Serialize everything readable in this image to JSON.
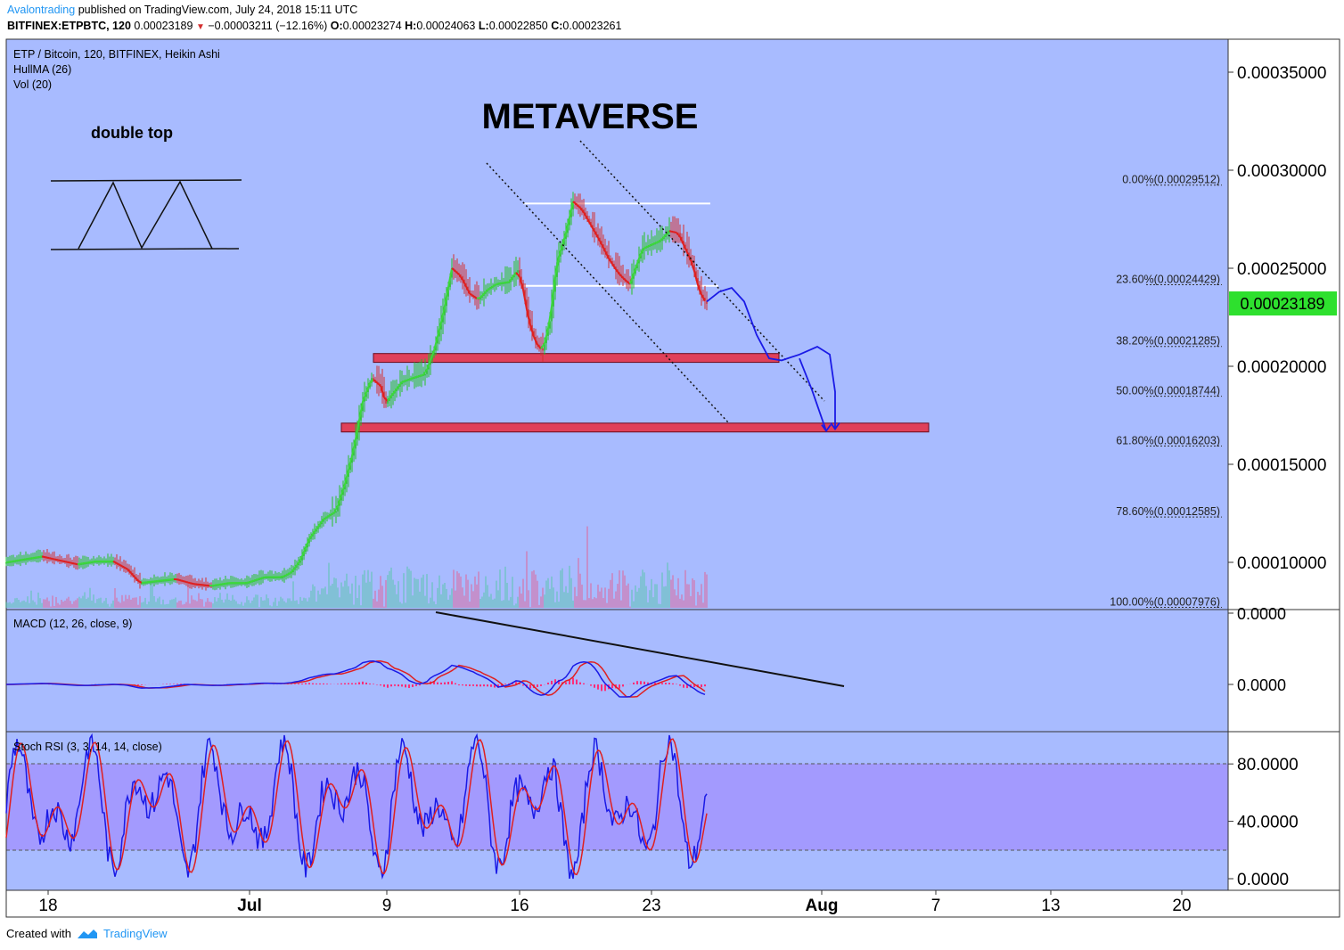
{
  "header": {
    "author": "Avalontrading",
    "published_text": "published on TradingView.com, July 24, 2018 15:11 UTC",
    "symbol": "BITFINEX:ETPBTC, 120",
    "last": "0.00023189",
    "change": "−0.00003211 (−12.16%)",
    "o_label": "O:",
    "o_value": "0.00023274",
    "h_label": "H:",
    "h_value": "0.00024063",
    "l_label": "L:",
    "l_value": "0.00022850",
    "c_label": "C:",
    "c_value": "0.00023261"
  },
  "legend": {
    "title": "ETP / Bitcoin, 120, BITFINEX, Heikin Ashi",
    "hullma": "HullMA (26)",
    "vol": "Vol (20)",
    "macd": "MACD (12, 26, close, 9)",
    "stoch": "Stoch RSI (3, 3, 14, 14, close)"
  },
  "annotations": {
    "main_title": "METAVERSE",
    "pattern_label": "double top"
  },
  "colors": {
    "background": "#a8bbff",
    "stoch_band": "#a39afe",
    "up": "#26c126",
    "down": "#d32f2f",
    "zone_fill": "#e0405a",
    "forecast": "#1a1ae6",
    "price_tag": "#2ee02e"
  },
  "chart_data": [
    {
      "type": "candlestick",
      "title": "ETP / Bitcoin, 120, BITFINEX, Heikin Ashi",
      "price_axis": {
        "range": [
          7e-05,
          0.00038
        ],
        "ticks": [
          "0.00010000",
          "0.00015000",
          "0.00020000",
          "0.00025000",
          "0.00030000",
          "0.00035000"
        ],
        "tick_values": [
          0.0001,
          0.00015,
          0.0002,
          0.00025,
          0.0003,
          0.00035
        ]
      },
      "time_axis": {
        "labels": [
          "18",
          "Jul",
          "9",
          "16",
          "23",
          "Aug",
          "7",
          "13",
          "20"
        ],
        "bold": [
          "Jul",
          "Aug"
        ]
      },
      "current_price": "0.00023189",
      "current_price_value": 0.00023189,
      "fibonacci": [
        {
          "label": "0.00%(0.00029512)",
          "value": 0.00029512
        },
        {
          "label": "23.60%(0.00024429)",
          "value": 0.00024429
        },
        {
          "label": "38.20%(0.00021285)",
          "value": 0.00021285
        },
        {
          "label": "50.00%(0.00018744)",
          "value": 0.00018744
        },
        {
          "label": "61.80%(0.00016203)",
          "value": 0.00016203
        },
        {
          "label": "78.60%(0.00012585)",
          "value": 0.00012585
        },
        {
          "label": "100.00%(0.00007976)",
          "value": 7.976e-05
        }
      ],
      "support_zones": [
        {
          "low": 0.000202,
          "high": 0.0002065
        },
        {
          "low": 0.0001665,
          "high": 0.000171
        }
      ],
      "resistance_lines": [
        0.000283,
        0.000241
      ],
      "price_path": [
        [
          0,
          0.0001
        ],
        [
          10,
          0.0001015
        ],
        [
          20,
          0.000103
        ],
        [
          30,
          0.000101
        ],
        [
          40,
          9.9e-05
        ],
        [
          50,
          0.0001005
        ],
        [
          60,
          0.0001005
        ],
        [
          68,
          9.65e-05
        ],
        [
          75,
          8.95e-05
        ],
        [
          85,
          9.05e-05
        ],
        [
          95,
          9.15e-05
        ],
        [
          105,
          8.9e-05
        ],
        [
          115,
          8.8e-05
        ],
        [
          125,
          8.95e-05
        ],
        [
          135,
          8.95e-05
        ],
        [
          145,
          9.25e-05
        ],
        [
          155,
          9.25e-05
        ],
        [
          160,
          9.5e-05
        ],
        [
          165,
          0.000101
        ],
        [
          170,
          0.000112
        ],
        [
          178,
          0.000122
        ],
        [
          185,
          0.000126
        ],
        [
          190,
          0.00014
        ],
        [
          195,
          0.000158
        ],
        [
          200,
          0.000182
        ],
        [
          205,
          0.000194
        ],
        [
          210,
          0.00019
        ],
        [
          213,
          0.000181
        ],
        [
          216,
          0.000185
        ],
        [
          222,
          0.000192
        ],
        [
          228,
          0.000194
        ],
        [
          235,
          0.000196
        ],
        [
          240,
          0.000208
        ],
        [
          245,
          0.000226
        ],
        [
          250,
          0.00025
        ],
        [
          255,
          0.000246
        ],
        [
          260,
          0.000237
        ],
        [
          265,
          0.000234
        ],
        [
          270,
          0.000239
        ],
        [
          275,
          0.000242
        ],
        [
          282,
          0.000243
        ],
        [
          287,
          0.000249
        ],
        [
          290,
          0.000239
        ],
        [
          293,
          0.000224
        ],
        [
          297,
          0.000212
        ],
        [
          301,
          0.000208
        ],
        [
          305,
          0.000223
        ],
        [
          309,
          0.000253
        ],
        [
          314,
          0.000268
        ],
        [
          318,
          0.000284
        ],
        [
          323,
          0.00028
        ],
        [
          328,
          0.000272
        ],
        [
          333,
          0.000264
        ],
        [
          338,
          0.000255
        ],
        [
          343,
          0.000248
        ],
        [
          347,
          0.000244
        ],
        [
          350,
          0.000242
        ],
        [
          353,
          0.00025
        ],
        [
          357,
          0.00026
        ],
        [
          362,
          0.000262
        ],
        [
          367,
          0.000264
        ],
        [
          372,
          0.000269
        ],
        [
          377,
          0.000268
        ],
        [
          381,
          0.00026
        ],
        [
          385,
          0.000252
        ],
        [
          389,
          0.000238
        ],
        [
          393,
          0.00023189
        ]
      ],
      "forecast_paths": [
        [
          [
            393,
            0.000233
          ],
          [
            400,
            0.000238
          ],
          [
            407,
            0.00024
          ],
          [
            414,
            0.000233
          ],
          [
            421,
            0.000216
          ],
          [
            428,
            0.000204
          ],
          [
            435,
            0.000203
          ],
          [
            445,
            0.000206
          ],
          [
            455,
            0.00021
          ],
          [
            462,
            0.000206
          ],
          [
            465,
            0.000187
          ],
          [
            465,
            0.000168
          ]
        ],
        [
          [
            445,
            0.000204
          ],
          [
            452,
            0.000188
          ],
          [
            460,
            0.000167
          ]
        ]
      ]
    },
    {
      "type": "line",
      "title": "MACD (12, 26, close, 9)",
      "ticks": [
        "0.0000",
        "0.0000"
      ]
    },
    {
      "type": "line",
      "title": "Stoch RSI (3, 3, 14, 14, close)",
      "ticks": [
        "80.0000",
        "40.0000",
        "0.0000"
      ],
      "tick_values": [
        80,
        40,
        0
      ],
      "band": [
        20,
        80
      ]
    }
  ]
}
